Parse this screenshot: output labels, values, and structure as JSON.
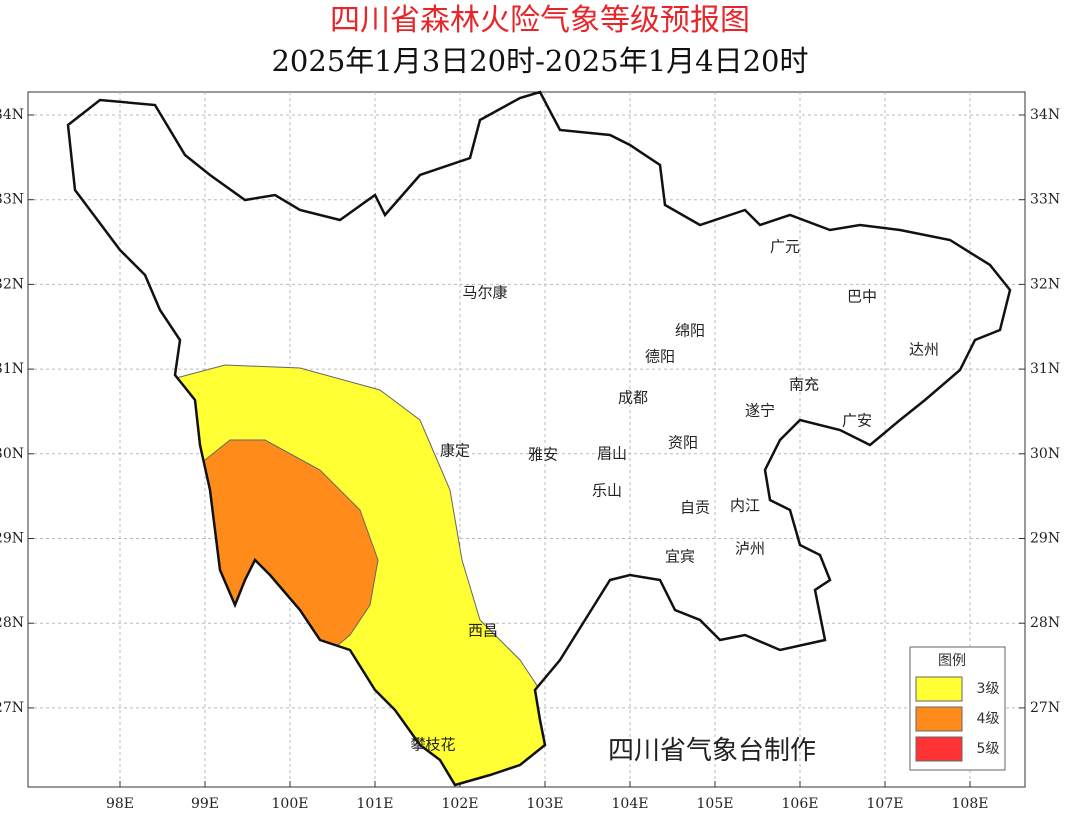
{
  "header": {
    "title": "四川省森林火险气象等级预报图",
    "subtitle": "2025年1月3日20时-2025年1月4日20时"
  },
  "map": {
    "lat_ticks": [
      "34N",
      "33N",
      "32N",
      "31N",
      "30N",
      "29N",
      "28N",
      "27N"
    ],
    "lon_ticks": [
      "98E",
      "99E",
      "100E",
      "101E",
      "102E",
      "103E",
      "104E",
      "105E",
      "106E",
      "107E",
      "108E"
    ],
    "cities": [
      "马尔康",
      "广元",
      "巴中",
      "绵阳",
      "德阳",
      "达州",
      "南充",
      "成都",
      "遂宁",
      "广安",
      "康定",
      "雅安",
      "眉山",
      "资阳",
      "乐山",
      "自贡",
      "内江",
      "宜宾",
      "泸州",
      "西昌",
      "攀枝花"
    ],
    "credit": "四川省气象台制作"
  },
  "legend": {
    "title": "图例",
    "items": [
      {
        "label": "3级",
        "color": "#ffff33"
      },
      {
        "label": "4级",
        "color": "#ff8c1a"
      },
      {
        "label": "5级",
        "color": "#ff3333"
      }
    ]
  }
}
